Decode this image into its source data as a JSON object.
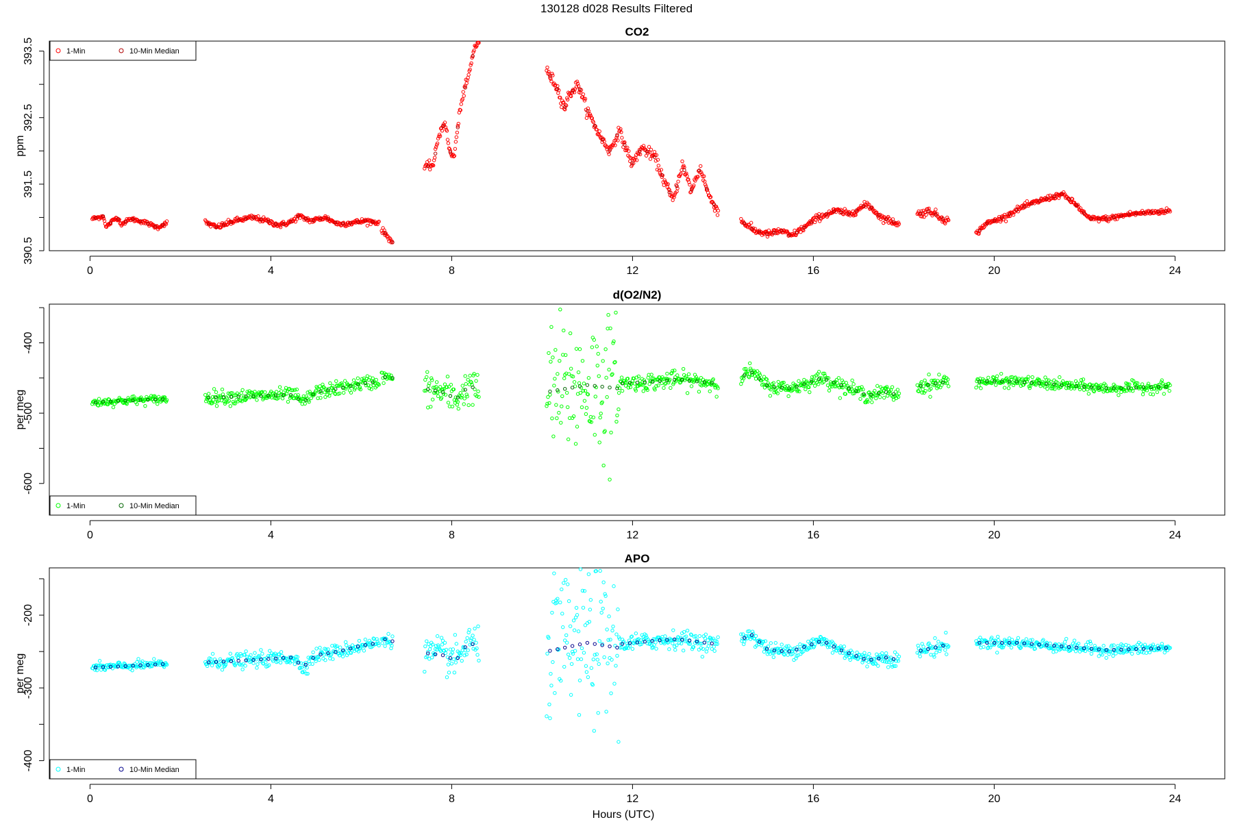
{
  "suptitle": "130128   d028   Results Filtered",
  "xlabel": "Hours (UTC)",
  "chart_data": [
    {
      "type": "scatter",
      "title": "CO2",
      "ylabel": "ppm",
      "xlim": [
        -0.9,
        25.1
      ],
      "ylim": [
        390.5,
        393.65
      ],
      "xticks": [
        "0",
        "4",
        "8",
        "12",
        "16",
        "20",
        "24"
      ],
      "yticks": [
        "390.5",
        "391.5",
        "392.5",
        "393.5"
      ],
      "legend_position": "top-left",
      "colors": {
        "one_min": "#ff0000",
        "median": "#b00000"
      },
      "legend": [
        "1-Min",
        "10-Min Median"
      ],
      "segments": [
        {
          "start": 0.05,
          "end": 1.7,
          "knots": [
            [
              0.05,
              390.98
            ],
            [
              0.3,
              391.02
            ],
            [
              0.35,
              390.85
            ],
            [
              0.5,
              390.95
            ],
            [
              0.6,
              391.0
            ],
            [
              0.7,
              390.9
            ],
            [
              0.9,
              390.98
            ],
            [
              1.2,
              390.93
            ],
            [
              1.5,
              390.85
            ],
            [
              1.7,
              390.92
            ]
          ],
          "noise": 0.015
        },
        {
          "start": 2.55,
          "end": 6.4,
          "knots": [
            [
              2.55,
              390.93
            ],
            [
              2.8,
              390.85
            ],
            [
              3.2,
              390.95
            ],
            [
              3.6,
              391.0
            ],
            [
              3.9,
              390.95
            ],
            [
              4.2,
              390.88
            ],
            [
              4.5,
              390.95
            ],
            [
              4.6,
              391.02
            ],
            [
              4.9,
              390.95
            ],
            [
              5.2,
              391.0
            ],
            [
              5.5,
              390.9
            ],
            [
              5.8,
              390.92
            ],
            [
              6.1,
              390.95
            ],
            [
              6.4,
              390.92
            ]
          ],
          "noise": 0.02
        },
        {
          "start": 6.45,
          "end": 6.7,
          "knots": [
            [
              6.45,
              390.82
            ],
            [
              6.7,
              390.62
            ]
          ],
          "noise": 0.02
        },
        {
          "start": 7.4,
          "end": 8.6,
          "knots": [
            [
              7.4,
              391.75
            ],
            [
              7.6,
              391.8
            ],
            [
              7.7,
              392.2
            ],
            [
              7.85,
              392.45
            ],
            [
              7.95,
              392.0
            ],
            [
              8.05,
              391.9
            ],
            [
              8.2,
              392.7
            ],
            [
              8.4,
              393.2
            ],
            [
              8.5,
              393.55
            ],
            [
              8.6,
              393.65
            ]
          ],
          "noise": 0.03
        },
        {
          "start": 10.1,
          "end": 13.9,
          "knots": [
            [
              10.1,
              393.2
            ],
            [
              10.3,
              393.0
            ],
            [
              10.5,
              392.65
            ],
            [
              10.6,
              392.85
            ],
            [
              10.8,
              393.0
            ],
            [
              11.0,
              392.6
            ],
            [
              11.3,
              392.2
            ],
            [
              11.5,
              392.0
            ],
            [
              11.7,
              392.3
            ],
            [
              12.0,
              391.8
            ],
            [
              12.2,
              392.05
            ],
            [
              12.5,
              391.9
            ],
            [
              12.7,
              391.55
            ],
            [
              12.9,
              391.25
            ],
            [
              13.1,
              391.8
            ],
            [
              13.3,
              391.4
            ],
            [
              13.5,
              391.75
            ],
            [
              13.7,
              391.3
            ],
            [
              13.9,
              391.1
            ]
          ],
          "noise": 0.04
        },
        {
          "start": 14.4,
          "end": 17.9,
          "knots": [
            [
              14.4,
              390.95
            ],
            [
              14.7,
              390.8
            ],
            [
              15.0,
              390.75
            ],
            [
              15.3,
              390.8
            ],
            [
              15.5,
              390.72
            ],
            [
              15.8,
              390.85
            ],
            [
              16.1,
              391.0
            ],
            [
              16.5,
              391.1
            ],
            [
              16.8,
              391.05
            ],
            [
              17.2,
              391.2
            ],
            [
              17.5,
              391.0
            ],
            [
              17.9,
              390.9
            ]
          ],
          "noise": 0.025
        },
        {
          "start": 18.3,
          "end": 19.0,
          "knots": [
            [
              18.3,
              391.05
            ],
            [
              18.6,
              391.1
            ],
            [
              18.8,
              391.0
            ],
            [
              19.0,
              390.95
            ]
          ],
          "noise": 0.03
        },
        {
          "start": 19.6,
          "end": 23.9,
          "knots": [
            [
              19.6,
              390.75
            ],
            [
              19.8,
              390.9
            ],
            [
              20.2,
              391.0
            ],
            [
              20.6,
              391.15
            ],
            [
              21.0,
              391.25
            ],
            [
              21.5,
              391.35
            ],
            [
              21.8,
              391.2
            ],
            [
              22.1,
              390.98
            ],
            [
              22.5,
              390.98
            ],
            [
              23.0,
              391.05
            ],
            [
              23.5,
              391.08
            ],
            [
              23.9,
              391.1
            ]
          ],
          "noise": 0.02
        }
      ]
    },
    {
      "type": "scatter",
      "title": "d(O2/N2)",
      "ylabel": "per meg",
      "xlim": [
        -0.9,
        25.1
      ],
      "ylim": [
        -645,
        -345
      ],
      "xticks": [
        "0",
        "4",
        "8",
        "12",
        "16",
        "20",
        "24"
      ],
      "yticks": [
        "-600",
        "-500",
        "-400"
      ],
      "legend_position": "bottom-left",
      "colors": {
        "one_min": "#00ff00",
        "median": "#006400"
      },
      "legend": [
        "1-Min",
        "10-Min Median"
      ],
      "segments": [
        {
          "start": 0.05,
          "end": 1.7,
          "knots": [
            [
              0.05,
              -485
            ],
            [
              0.8,
              -482
            ],
            [
              1.7,
              -480
            ]
          ],
          "noise": 3
        },
        {
          "start": 2.55,
          "end": 6.4,
          "knots": [
            [
              2.55,
              -478
            ],
            [
              3.5,
              -476
            ],
            [
              4.5,
              -474
            ],
            [
              4.7,
              -485
            ],
            [
              5.0,
              -470
            ],
            [
              5.5,
              -465
            ],
            [
              6.0,
              -458
            ],
            [
              6.4,
              -455
            ]
          ],
          "noise": 5
        },
        {
          "start": 6.45,
          "end": 6.7,
          "knots": [
            [
              6.45,
              -448
            ],
            [
              6.7,
              -450
            ]
          ],
          "noise": 4
        },
        {
          "start": 7.4,
          "end": 8.6,
          "knots": [
            [
              7.4,
              -465
            ],
            [
              7.8,
              -470
            ],
            [
              8.1,
              -480
            ],
            [
              8.4,
              -460
            ],
            [
              8.6,
              -470
            ]
          ],
          "noise": 12
        },
        {
          "start": 10.1,
          "end": 11.7,
          "knots": [
            [
              10.1,
              -470
            ],
            [
              11.0,
              -460
            ],
            [
              11.7,
              -465
            ]
          ],
          "noise": 50
        },
        {
          "start": 11.7,
          "end": 13.9,
          "knots": [
            [
              11.7,
              -458
            ],
            [
              12.5,
              -455
            ],
            [
              13.0,
              -452
            ],
            [
              13.9,
              -458
            ]
          ],
          "noise": 6
        },
        {
          "start": 14.4,
          "end": 17.9,
          "knots": [
            [
              14.4,
              -450
            ],
            [
              14.6,
              -440
            ],
            [
              15.0,
              -462
            ],
            [
              15.5,
              -465
            ],
            [
              16.2,
              -450
            ],
            [
              16.6,
              -460
            ],
            [
              17.2,
              -475
            ],
            [
              17.6,
              -470
            ],
            [
              17.9,
              -475
            ]
          ],
          "noise": 5
        },
        {
          "start": 18.3,
          "end": 19.0,
          "knots": [
            [
              18.3,
              -462
            ],
            [
              19.0,
              -455
            ]
          ],
          "noise": 6
        },
        {
          "start": 19.6,
          "end": 23.9,
          "knots": [
            [
              19.6,
              -455
            ],
            [
              20.5,
              -455
            ],
            [
              21.5,
              -460
            ],
            [
              22.5,
              -465
            ],
            [
              23.9,
              -462
            ]
          ],
          "noise": 4
        }
      ]
    },
    {
      "type": "scatter",
      "title": "APO",
      "ylabel": "per meg",
      "xlim": [
        -0.9,
        25.1
      ],
      "ylim": [
        -425,
        -135
      ],
      "xticks": [
        "0",
        "4",
        "8",
        "12",
        "16",
        "20",
        "24"
      ],
      "yticks": [
        "-400",
        "-300",
        "-200"
      ],
      "legend_position": "bottom-left",
      "colors": {
        "one_min": "#00ffff",
        "median": "#00008b"
      },
      "legend": [
        "1-Min",
        "10-Min Median"
      ],
      "segments": [
        {
          "start": 0.05,
          "end": 1.7,
          "knots": [
            [
              0.05,
              -272
            ],
            [
              0.8,
              -270
            ],
            [
              1.7,
              -267
            ]
          ],
          "noise": 3
        },
        {
          "start": 2.55,
          "end": 6.4,
          "knots": [
            [
              2.55,
              -265
            ],
            [
              3.5,
              -262
            ],
            [
              4.5,
              -258
            ],
            [
              4.7,
              -272
            ],
            [
              5.0,
              -255
            ],
            [
              5.5,
              -250
            ],
            [
              6.0,
              -242
            ],
            [
              6.4,
              -238
            ]
          ],
          "noise": 5
        },
        {
          "start": 6.45,
          "end": 6.7,
          "knots": [
            [
              6.45,
              -232
            ],
            [
              6.7,
              -236
            ]
          ],
          "noise": 4
        },
        {
          "start": 7.4,
          "end": 8.6,
          "knots": [
            [
              7.4,
              -252
            ],
            [
              7.8,
              -255
            ],
            [
              8.1,
              -262
            ],
            [
              8.4,
              -235
            ],
            [
              8.6,
              -250
            ]
          ],
          "noise": 12
        },
        {
          "start": 10.1,
          "end": 11.7,
          "knots": [
            [
              10.1,
              -250
            ],
            [
              11.0,
              -238
            ],
            [
              11.7,
              -245
            ]
          ],
          "noise": 50
        },
        {
          "start": 11.7,
          "end": 13.9,
          "knots": [
            [
              11.7,
              -240
            ],
            [
              12.5,
              -235
            ],
            [
              13.0,
              -233
            ],
            [
              13.9,
              -240
            ]
          ],
          "noise": 6
        },
        {
          "start": 14.4,
          "end": 17.9,
          "knots": [
            [
              14.4,
              -235
            ],
            [
              14.6,
              -225
            ],
            [
              15.0,
              -248
            ],
            [
              15.5,
              -250
            ],
            [
              16.2,
              -235
            ],
            [
              16.6,
              -248
            ],
            [
              17.2,
              -262
            ],
            [
              17.6,
              -258
            ],
            [
              17.9,
              -262
            ]
          ],
          "noise": 5
        },
        {
          "start": 18.3,
          "end": 19.0,
          "knots": [
            [
              18.3,
              -250
            ],
            [
              19.0,
              -240
            ]
          ],
          "noise": 6
        },
        {
          "start": 19.6,
          "end": 23.9,
          "knots": [
            [
              19.6,
              -238
            ],
            [
              20.5,
              -238
            ],
            [
              21.5,
              -243
            ],
            [
              22.5,
              -248
            ],
            [
              23.9,
              -245
            ]
          ],
          "noise": 4
        }
      ]
    }
  ]
}
